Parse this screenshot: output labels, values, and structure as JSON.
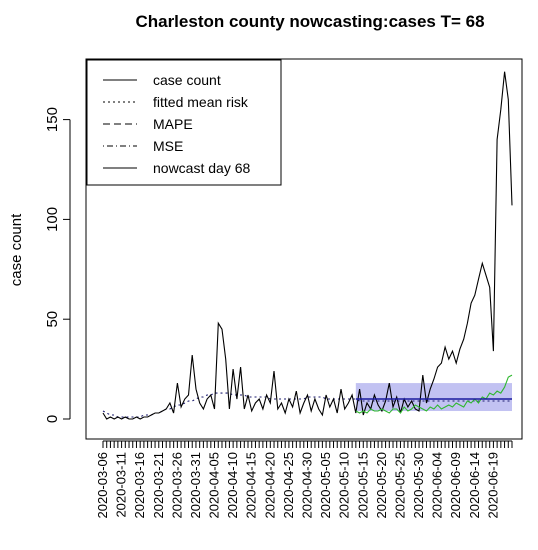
{
  "chart_data": {
    "type": "line",
    "title": "Charleston county nowcasting:cases T= 68",
    "xlabel": "",
    "ylabel": "case count",
    "ylim": [
      0,
      175
    ],
    "yticks": [
      0,
      50,
      100,
      150
    ],
    "x_start": "2020-03-06",
    "x_end": "2020-06-24",
    "nowcast_start": "2020-05-13",
    "x_tick_labels": [
      "2020-03-06",
      "2020-03-11",
      "2020-03-16",
      "2020-03-21",
      "2020-03-26",
      "2020-03-31",
      "2020-04-05",
      "2020-04-10",
      "2020-04-15",
      "2020-04-20",
      "2020-04-25",
      "2020-04-30",
      "2020-05-05",
      "2020-05-10",
      "2020-05-15",
      "2020-05-20",
      "2020-05-25",
      "2020-05-30",
      "2020-06-04",
      "2020-06-09",
      "2020-06-14",
      "2020-06-19"
    ],
    "legend": {
      "position": "top-left",
      "entries": [
        {
          "label": "case count",
          "dash": "solid"
        },
        {
          "label": "fitted mean risk",
          "dash": "dotted"
        },
        {
          "label": "MAPE",
          "dash": "dashed"
        },
        {
          "label": "MSE",
          "dash": "dotdash"
        },
        {
          "label": "nowcast day 68",
          "dash": "solid"
        }
      ]
    },
    "colors": {
      "case_count": "#000000",
      "fitted_mean_risk": "#1a1a6e",
      "nowcast": "#1a1a9e",
      "interval_band": "#b7b7f0",
      "green_series": "#2eb82e"
    },
    "series": [
      {
        "name": "case count",
        "values": [
          3,
          0,
          1,
          0,
          1,
          0,
          1,
          0,
          0,
          1,
          0,
          1,
          1,
          2,
          3,
          3,
          4,
          5,
          8,
          3,
          18,
          6,
          10,
          12,
          32,
          15,
          8,
          5,
          10,
          12,
          5,
          48,
          45,
          30,
          5,
          25,
          10,
          26,
          5,
          12,
          4,
          8,
          10,
          5,
          12,
          8,
          24,
          5,
          8,
          3,
          10,
          6,
          14,
          3,
          8,
          12,
          4,
          10,
          5,
          2,
          12,
          6,
          10,
          3,
          15,
          5,
          8,
          12,
          3,
          15,
          2,
          8,
          5,
          12,
          7,
          4,
          9,
          18,
          6,
          11,
          3,
          10,
          6,
          9,
          5,
          4,
          22,
          8,
          15,
          20,
          26,
          28,
          36,
          30,
          34,
          28,
          35,
          40,
          48,
          58,
          62,
          70,
          78,
          72,
          66,
          34,
          140,
          155,
          174,
          160,
          107
        ]
      },
      {
        "name": "fitted mean risk",
        "values": [
          4,
          3,
          2,
          2,
          1,
          1,
          1,
          1,
          1,
          1,
          1,
          2,
          2,
          2,
          3,
          3,
          4,
          5,
          5,
          6,
          7,
          7,
          8,
          9,
          9,
          10,
          11,
          11,
          12,
          12,
          13,
          13,
          13,
          13,
          13,
          12,
          12,
          12,
          12,
          11,
          11,
          11,
          11,
          11,
          11,
          10,
          10,
          10,
          10,
          10,
          10,
          10,
          10,
          10,
          10,
          11,
          11,
          11,
          11,
          11,
          10,
          10,
          10,
          10,
          10,
          10,
          10,
          10,
          10,
          9,
          9,
          9,
          9,
          9,
          9,
          9,
          9,
          9,
          9,
          9,
          9,
          9,
          9,
          9,
          9,
          9,
          9,
          9,
          9,
          9,
          9,
          9,
          9,
          9,
          9,
          9,
          9,
          9,
          9,
          9,
          9,
          9,
          9,
          9,
          9,
          9,
          9,
          9,
          9,
          9,
          9
        ]
      },
      {
        "name": "nowcast day 68",
        "values": [
          10,
          10,
          10,
          10,
          10,
          10,
          10,
          10,
          10,
          10,
          10,
          10,
          10,
          10,
          10,
          10,
          10,
          10,
          10,
          10,
          10,
          10,
          10,
          10,
          10,
          10,
          10,
          10,
          10,
          10,
          10,
          10,
          10,
          10,
          10,
          10,
          10,
          10,
          10,
          10,
          10,
          10,
          10
        ]
      },
      {
        "name": "",
        "values": [
          4,
          3,
          4,
          3,
          5,
          4,
          4,
          5,
          4,
          3,
          5,
          5,
          3,
          6,
          4,
          5,
          7,
          6,
          5,
          4,
          6,
          5,
          7,
          5,
          6,
          7,
          6,
          8,
          7,
          6,
          9,
          8,
          10,
          8,
          11,
          10,
          13,
          12,
          14,
          13,
          16,
          21,
          22
        ]
      }
    ],
    "interval_band": {
      "lower": 4,
      "upper": 18
    }
  }
}
